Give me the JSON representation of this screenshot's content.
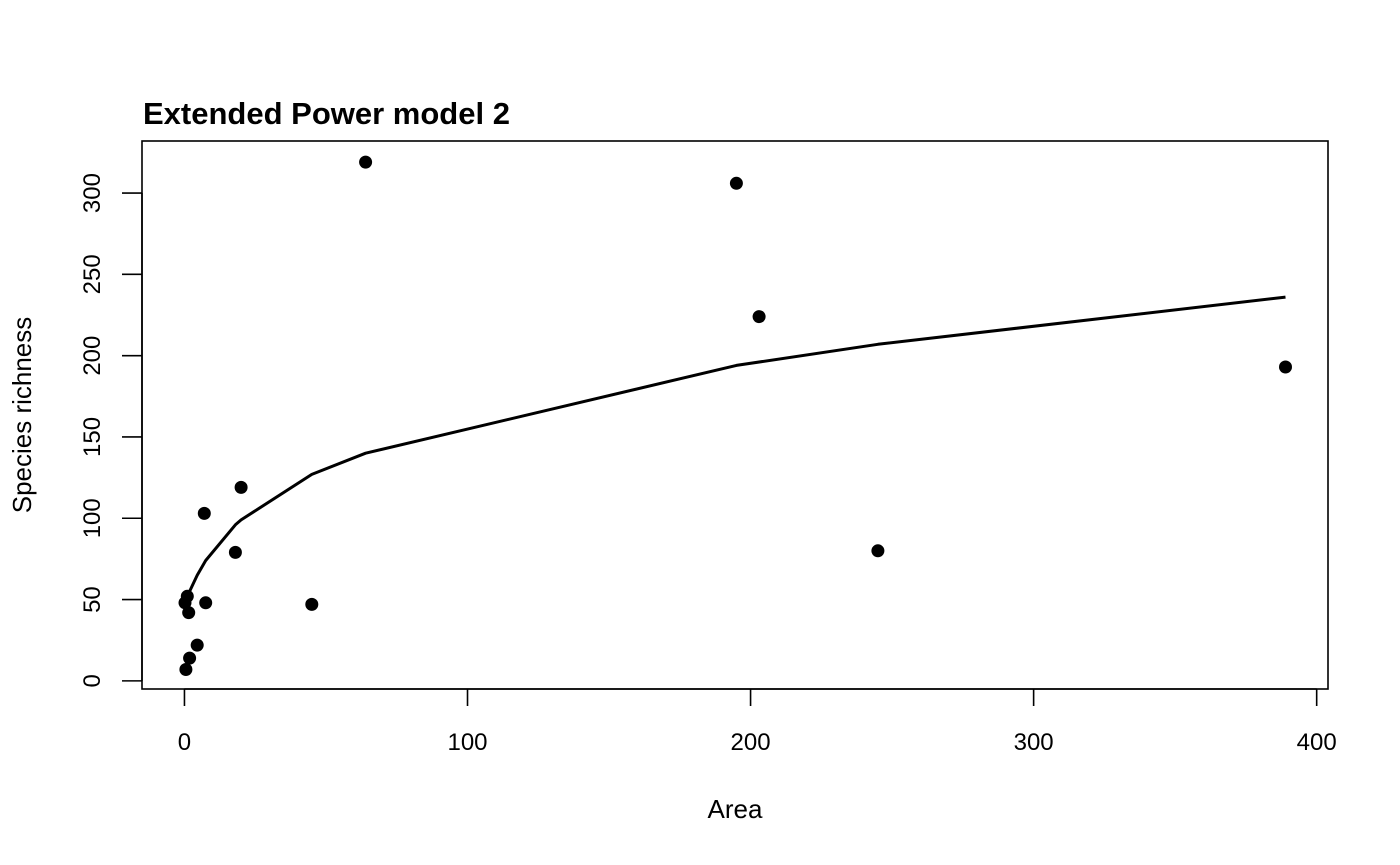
{
  "chart_data": {
    "type": "scatter",
    "title": "Extended Power model 2",
    "xlabel": "Area",
    "ylabel": "Species richness",
    "xlim": [
      -15,
      404
    ],
    "ylim": [
      -5,
      332
    ],
    "x_ticks": [
      0,
      100,
      200,
      300,
      400
    ],
    "y_ticks": [
      0,
      50,
      100,
      150,
      200,
      250,
      300
    ],
    "grid": false,
    "points": {
      "x": [
        0.2,
        0.5,
        1.0,
        1.5,
        1.8,
        4.5,
        7.0,
        7.5,
        18.0,
        20.0,
        45.0,
        64.0,
        195.0,
        203.0,
        245.0,
        389.0
      ],
      "y": [
        48,
        7,
        52,
        42,
        14,
        22,
        103,
        48,
        79,
        119,
        47,
        319,
        306,
        224,
        80,
        193
      ]
    },
    "fitted_curve": {
      "x": [
        0.2,
        0.5,
        1.0,
        1.5,
        1.8,
        4.5,
        7.5,
        18.0,
        20.0,
        45.0,
        64.0,
        195.0,
        245.0,
        389.0
      ],
      "y": [
        40,
        46,
        50,
        53,
        55,
        65,
        74,
        96,
        99,
        127,
        140,
        194,
        207,
        236
      ]
    }
  }
}
